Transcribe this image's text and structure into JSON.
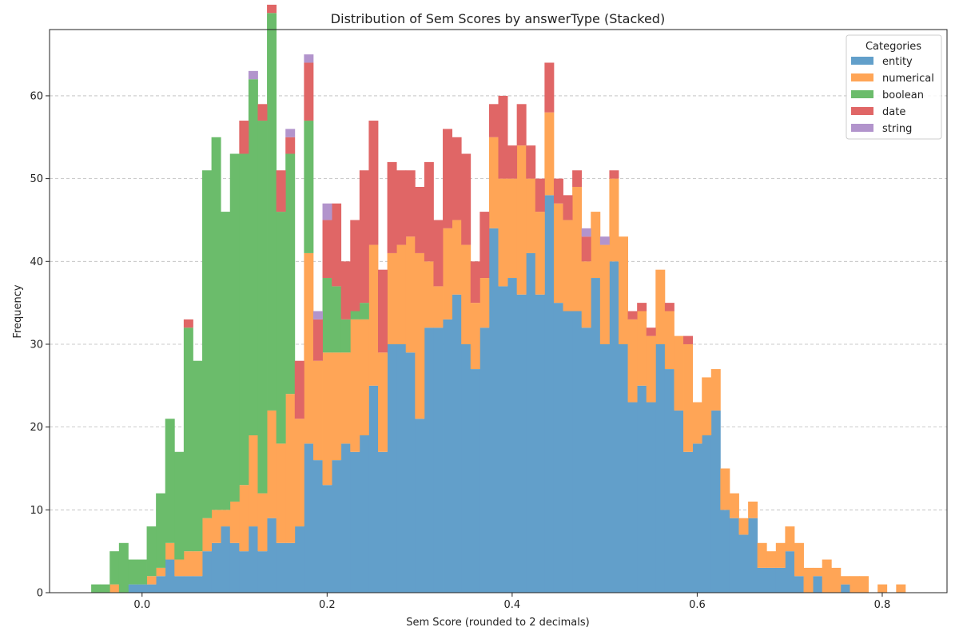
{
  "chart_data": {
    "type": "bar",
    "stacked": true,
    "title": "Distribution of Sem Scores by answerType (Stacked)",
    "xlabel": "Sem Score (rounded to 2 decimals)",
    "ylabel": "Frequency",
    "xlim": [
      -0.1,
      0.87
    ],
    "ylim": [
      0,
      68
    ],
    "bin_width": 0.01,
    "x_ticks": [
      0.0,
      0.2,
      0.4,
      0.6,
      0.8
    ],
    "x_tick_labels": [
      "0.0",
      "0.2",
      "0.4",
      "0.6",
      "0.8"
    ],
    "y_ticks": [
      0,
      10,
      20,
      30,
      40,
      50,
      60
    ],
    "y_tick_labels": [
      "0",
      "10",
      "20",
      "30",
      "40",
      "50",
      "60"
    ],
    "grid": "y-dashed",
    "legend_title": "Categories",
    "legend_position": "top-right",
    "x": [
      -0.05,
      -0.04,
      -0.03,
      -0.02,
      -0.01,
      0.0,
      0.01,
      0.02,
      0.03,
      0.04,
      0.05,
      0.06,
      0.07,
      0.08,
      0.09,
      0.1,
      0.11,
      0.12,
      0.13,
      0.14,
      0.15,
      0.16,
      0.17,
      0.18,
      0.19,
      0.2,
      0.21,
      0.22,
      0.23,
      0.24,
      0.25,
      0.26,
      0.27,
      0.28,
      0.29,
      0.3,
      0.31,
      0.32,
      0.33,
      0.34,
      0.35,
      0.36,
      0.37,
      0.38,
      0.39,
      0.4,
      0.41,
      0.42,
      0.43,
      0.44,
      0.45,
      0.46,
      0.47,
      0.48,
      0.49,
      0.5,
      0.51,
      0.52,
      0.53,
      0.54,
      0.55,
      0.56,
      0.57,
      0.58,
      0.59,
      0.6,
      0.61,
      0.62,
      0.63,
      0.64,
      0.65,
      0.66,
      0.67,
      0.68,
      0.69,
      0.7,
      0.71,
      0.72,
      0.73,
      0.74,
      0.75,
      0.76,
      0.77,
      0.78,
      0.79,
      0.8,
      0.81,
      0.82
    ],
    "series": [
      {
        "name": "entity",
        "color": "#629fca",
        "values": [
          0,
          0,
          0,
          0,
          1,
          1,
          1,
          2,
          4,
          2,
          2,
          2,
          5,
          6,
          8,
          6,
          5,
          8,
          5,
          9,
          6,
          6,
          8,
          18,
          16,
          13,
          16,
          18,
          17,
          19,
          25,
          17,
          30,
          30,
          29,
          21,
          32,
          32,
          33,
          36,
          30,
          27,
          32,
          44,
          37,
          38,
          36,
          41,
          36,
          48,
          35,
          34,
          34,
          32,
          38,
          30,
          40,
          30,
          23,
          25,
          23,
          30,
          27,
          22,
          17,
          18,
          19,
          22,
          10,
          9,
          7,
          9,
          3,
          3,
          3,
          5,
          2,
          0,
          2,
          0,
          0,
          1,
          0,
          0,
          0,
          0,
          0,
          0
        ]
      },
      {
        "name": "numerical",
        "color": "#ffa556",
        "values": [
          0,
          0,
          1,
          0,
          0,
          0,
          1,
          1,
          2,
          2,
          3,
          3,
          4,
          4,
          2,
          5,
          8,
          11,
          7,
          13,
          12,
          18,
          13,
          23,
          12,
          16,
          13,
          11,
          16,
          14,
          17,
          12,
          11,
          12,
          14,
          20,
          8,
          5,
          11,
          9,
          12,
          8,
          6,
          11,
          13,
          12,
          18,
          9,
          10,
          10,
          12,
          11,
          15,
          8,
          8,
          12,
          10,
          13,
          10,
          9,
          8,
          9,
          7,
          9,
          13,
          5,
          7,
          5,
          5,
          3,
          2,
          2,
          3,
          2,
          3,
          3,
          4,
          3,
          1,
          4,
          3,
          1,
          2,
          2,
          0,
          1,
          0,
          1
        ]
      },
      {
        "name": "boolean",
        "color": "#6bbc6b",
        "values": [
          1,
          1,
          4,
          6,
          3,
          3,
          6,
          9,
          15,
          13,
          27,
          23,
          42,
          45,
          36,
          42,
          40,
          43,
          45,
          48,
          28,
          29,
          0,
          16,
          0,
          9,
          8,
          4,
          1,
          2,
          0,
          0,
          0,
          0,
          0,
          0,
          0,
          0,
          0,
          0,
          0,
          0,
          0,
          0,
          0,
          0,
          0,
          0,
          0,
          0,
          0,
          0,
          0,
          0,
          0,
          0,
          0,
          0,
          0,
          0,
          0,
          0,
          0,
          0,
          0,
          0,
          0,
          0,
          0,
          0,
          0,
          0,
          0,
          0,
          0,
          0,
          0,
          0,
          0,
          0,
          0,
          0,
          0,
          0,
          0,
          0,
          0,
          0
        ]
      },
      {
        "name": "date",
        "color": "#e06666",
        "values": [
          0,
          0,
          0,
          0,
          0,
          0,
          0,
          0,
          0,
          0,
          1,
          0,
          0,
          0,
          0,
          0,
          4,
          0,
          2,
          1,
          5,
          2,
          7,
          7,
          5,
          7,
          10,
          7,
          11,
          16,
          15,
          10,
          11,
          9,
          8,
          8,
          12,
          8,
          12,
          10,
          11,
          5,
          8,
          4,
          10,
          4,
          5,
          4,
          4,
          6,
          3,
          3,
          2,
          3,
          0,
          0,
          1,
          0,
          1,
          1,
          1,
          0,
          1,
          0,
          1,
          0,
          0,
          0,
          0,
          0,
          0,
          0,
          0,
          0,
          0,
          0,
          0,
          0,
          0,
          0,
          0,
          0,
          0,
          0,
          0,
          0,
          0,
          0
        ]
      },
      {
        "name": "string",
        "color": "#b294cc",
        "values": [
          0,
          0,
          0,
          0,
          0,
          0,
          0,
          0,
          0,
          0,
          0,
          0,
          0,
          0,
          0,
          0,
          0,
          1,
          0,
          0,
          0,
          1,
          0,
          1,
          1,
          2,
          0,
          0,
          0,
          0,
          0,
          0,
          0,
          0,
          0,
          0,
          0,
          0,
          0,
          0,
          0,
          0,
          0,
          0,
          0,
          0,
          0,
          0,
          0,
          0,
          0,
          0,
          0,
          1,
          0,
          1,
          0,
          0,
          0,
          0,
          0,
          0,
          0,
          0,
          0,
          0,
          0,
          0,
          0,
          0,
          0,
          0,
          0,
          0,
          0,
          0,
          0,
          0,
          0,
          0,
          0,
          0,
          0,
          0,
          0,
          0,
          0,
          0
        ]
      }
    ]
  }
}
